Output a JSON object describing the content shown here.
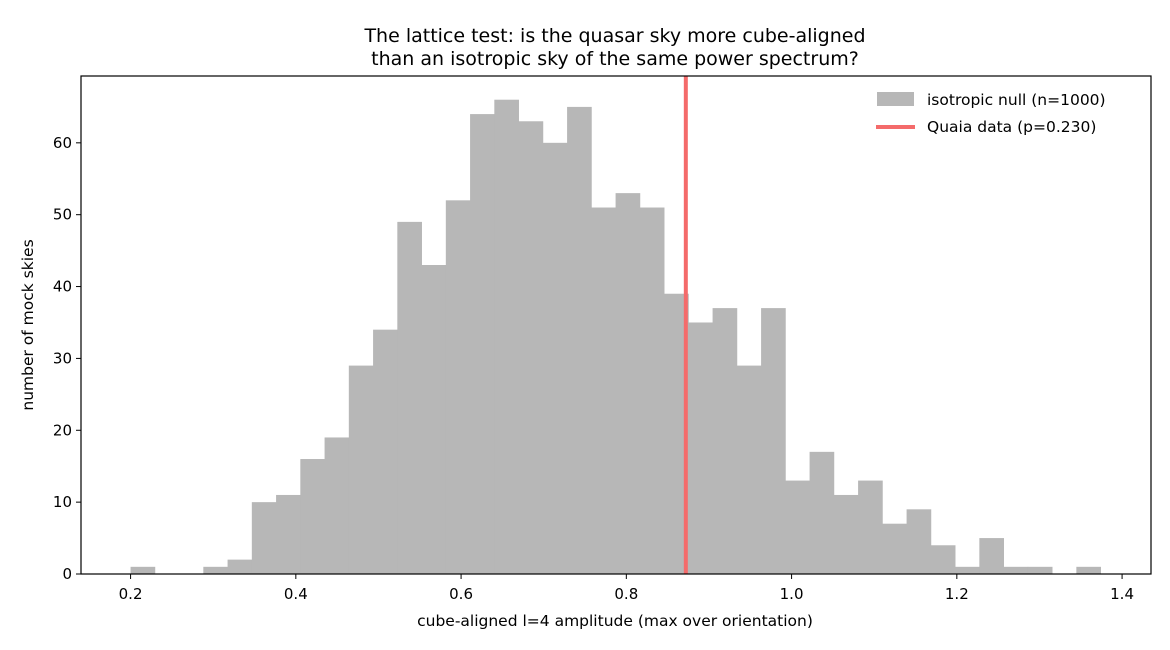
{
  "chart_data": {
    "type": "bar",
    "title_lines": [
      "The lattice test: is the quasar sky more cube-aligned",
      "than an isotropic sky of the same power spectrum?"
    ],
    "xlabel": "cube-aligned l=4 amplitude  (max over orientation)",
    "ylabel": "number of mock skies",
    "xlim": [
      0.14,
      1.435
    ],
    "ylim": [
      0,
      69.3
    ],
    "xticks": [
      0.2,
      0.4,
      0.6,
      0.8,
      1.0,
      1.2,
      1.4
    ],
    "xtick_labels": [
      "0.2",
      "0.4",
      "0.6",
      "0.8",
      "1.0",
      "1.2",
      "1.4"
    ],
    "yticks": [
      0,
      10,
      20,
      30,
      40,
      50,
      60
    ],
    "ytick_labels": [
      "0",
      "10",
      "20",
      "30",
      "40",
      "50",
      "60"
    ],
    "histogram": {
      "bin_start": 0.2,
      "bin_width": 0.02935,
      "counts": [
        1,
        0,
        0,
        1,
        2,
        10,
        11,
        16,
        19,
        29,
        34,
        49,
        43,
        52,
        64,
        66,
        63,
        60,
        65,
        51,
        53,
        51,
        39,
        35,
        37,
        29,
        37,
        13,
        17,
        11,
        13,
        7,
        9,
        4,
        1,
        5,
        1,
        1,
        0,
        1
      ],
      "color": "#b7b7b7"
    },
    "marker": {
      "x": 0.872,
      "color": "#f46b6b"
    },
    "legend": {
      "position": "top-right",
      "entries": [
        {
          "label": "isotropic null (n=1000)",
          "kind": "patch",
          "color": "#b7b7b7"
        },
        {
          "label": "Quaia data  (p=0.230)",
          "kind": "line",
          "color": "#f46b6b"
        }
      ]
    },
    "grid": false
  }
}
